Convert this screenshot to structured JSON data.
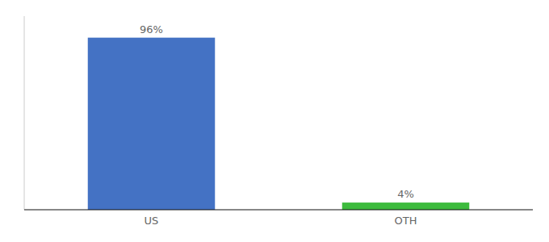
{
  "chart_data": {
    "type": "bar",
    "categories": [
      "US",
      "OTH"
    ],
    "values": [
      96,
      4
    ],
    "value_labels": [
      "96%",
      "4%"
    ],
    "colors": [
      "#4472c4",
      "#3dbb3d"
    ],
    "ylim": [
      0,
      108
    ],
    "data_labels": true,
    "tick_labels": "x"
  }
}
